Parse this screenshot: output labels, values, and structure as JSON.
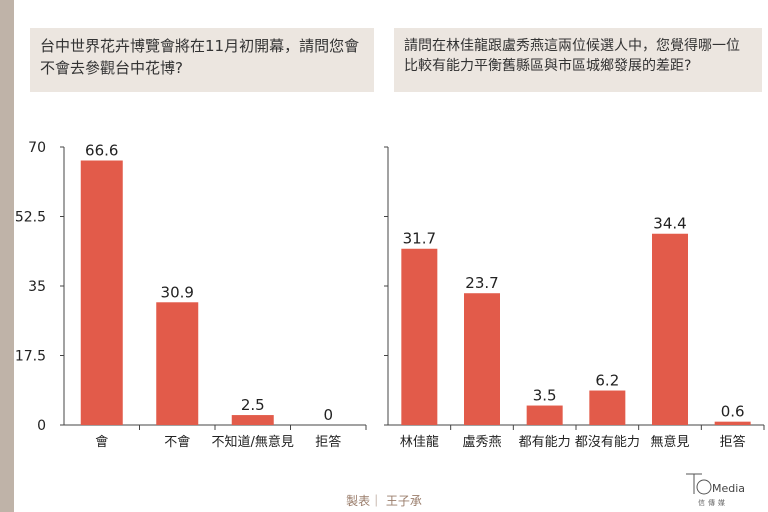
{
  "questions": {
    "left": "台中世界花卉博覽會將在11月初開幕，請問您會不會去參觀台中花博?",
    "right": "請問在林佳龍跟盧秀燕這兩位候選人中，您覺得哪一位比較有能力平衡舊縣區與市區城鄉發展的差距?"
  },
  "credit": "製表｜ 王子承",
  "logo": {
    "text": "Media",
    "subtext": "信傳媒"
  },
  "colors": {
    "bar": "#e25b4a",
    "axis": "#444444",
    "panel": "#ece6e0",
    "sidebar": "#bfb3a8"
  },
  "chart_data": [
    {
      "type": "bar",
      "title": "",
      "xlabel": "",
      "ylabel": "",
      "ylim": [
        0,
        70
      ],
      "yticks": [
        "0",
        "17.5",
        "35",
        "52.5",
        "70"
      ],
      "categories": [
        "會",
        "不會",
        "不知道/無意見",
        "拒答"
      ],
      "values": [
        66.6,
        30.9,
        2.5,
        0
      ],
      "value_labels": [
        "66.6",
        "30.9",
        "2.5",
        "0"
      ],
      "grid": false
    },
    {
      "type": "bar",
      "title": "",
      "xlabel": "",
      "ylabel": "",
      "ylim": [
        0,
        50
      ],
      "yticks": [
        "0",
        "12.5",
        "25",
        "37.5",
        "50"
      ],
      "categories": [
        "林佳龍",
        "盧秀燕",
        "都有能力",
        "都沒有能力",
        "無意見",
        "拒答"
      ],
      "values": [
        31.7,
        23.7,
        3.5,
        6.2,
        34.4,
        0.6
      ],
      "value_labels": [
        "31.7",
        "23.7",
        "3.5",
        "6.2",
        "34.4",
        "0.6"
      ],
      "grid": false
    }
  ]
}
